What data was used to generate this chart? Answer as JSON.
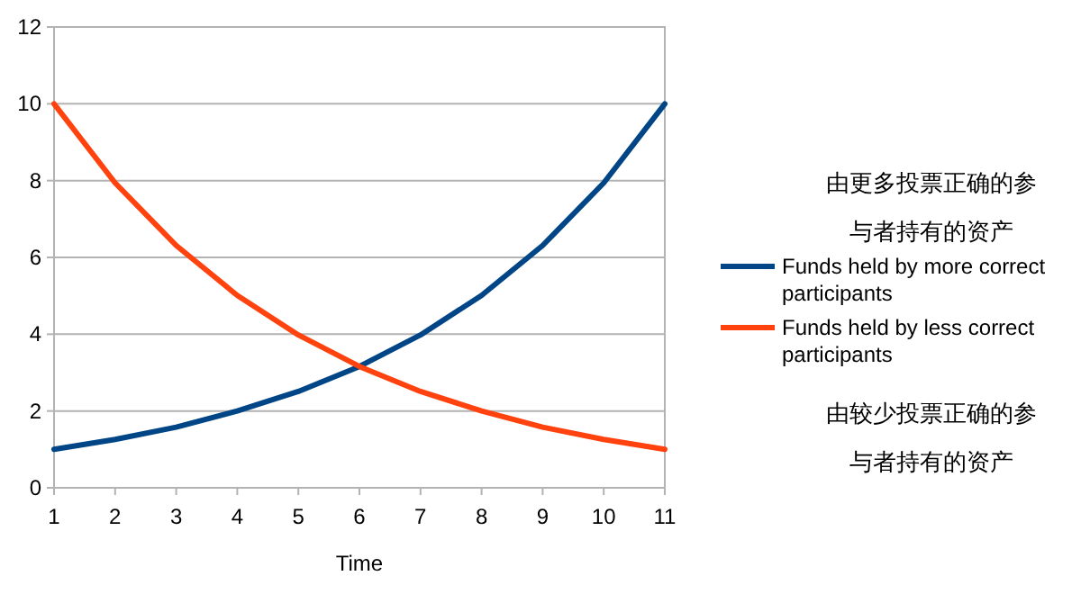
{
  "chart_data": {
    "type": "line",
    "xlabel": "Time",
    "x": [
      1,
      2,
      3,
      4,
      5,
      6,
      7,
      8,
      9,
      10,
      11
    ],
    "xlim": [
      1,
      11
    ],
    "xticks": [
      1,
      2,
      3,
      4,
      5,
      6,
      7,
      8,
      9,
      10,
      11
    ],
    "ylim": [
      0,
      12
    ],
    "yticks": [
      0,
      2,
      4,
      6,
      8,
      10,
      12
    ],
    "grid": "y",
    "legend": "right",
    "marker": "none",
    "line_style": "solid",
    "series": [
      {
        "name": "Funds held by more correct participants",
        "color": "#004586",
        "values": [
          1,
          1.26,
          1.58,
          2,
          2.51,
          3.16,
          3.98,
          5.01,
          6.31,
          7.94,
          10
        ]
      },
      {
        "name": "Funds held by less correct participants",
        "color": "#ff420e",
        "values": [
          10,
          7.94,
          6.31,
          5.01,
          3.98,
          3.16,
          2.51,
          2,
          1.58,
          1.26,
          1
        ]
      }
    ],
    "annotations": [
      "由更多投票正确的参与者持有的资产",
      "由较少投票正确的参与者持有的资产"
    ]
  }
}
